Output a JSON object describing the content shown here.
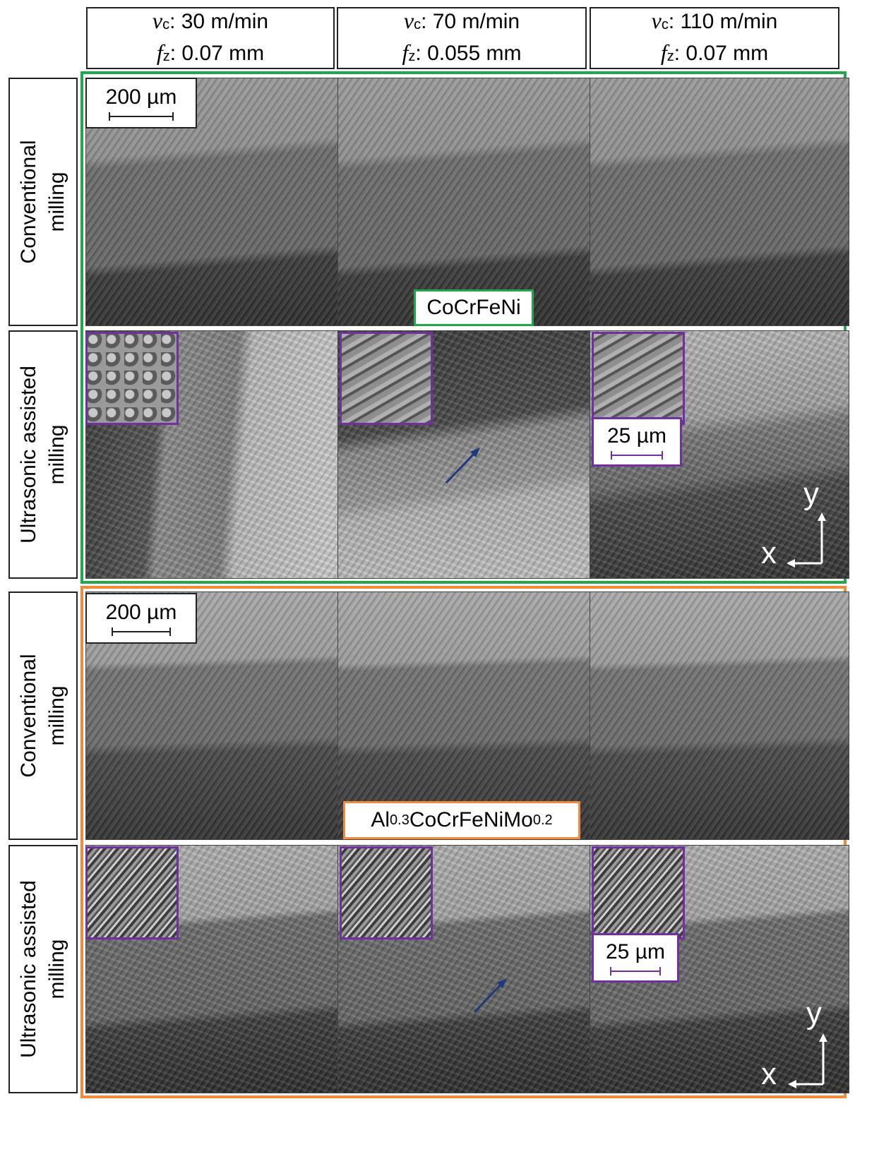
{
  "columns": [
    {
      "vc_label": "v",
      "vc_sub": "c",
      "vc_value": ": 30 m/min",
      "fz_label": "f",
      "fz_sub": "z",
      "fz_value": ": 0.07 mm"
    },
    {
      "vc_label": "v",
      "vc_sub": "c",
      "vc_value": ": 70 m/min",
      "fz_label": "f",
      "fz_sub": "z",
      "fz_value": ": 0.055 mm"
    },
    {
      "vc_label": "v",
      "vc_sub": "c",
      "vc_value": ": 110 m/min",
      "fz_label": "f",
      "fz_sub": "z",
      "fz_value": ": 0.07 mm"
    }
  ],
  "rows": [
    {
      "line1": "Conventional",
      "line2": "milling"
    },
    {
      "line1": "Ultrasonic assisted",
      "line2": "milling"
    },
    {
      "line1": "Conventional",
      "line2": "milling"
    },
    {
      "line1": "Ultrasonic assisted",
      "line2": "milling"
    }
  ],
  "materials": {
    "top": {
      "name": "CoCrFeNi",
      "color": "#22a84a"
    },
    "bottom": {
      "base": "Al",
      "sub1": "0.3",
      "mid": "CoCrFeNiMo",
      "sub2": "0.2",
      "color": "#f08a3c"
    }
  },
  "scales": {
    "large": "200 µm",
    "small": "25 µm",
    "small_color": "#7030a0"
  },
  "axes": {
    "y": "y",
    "x": "x"
  },
  "arrow_color": "#1f3a7a"
}
